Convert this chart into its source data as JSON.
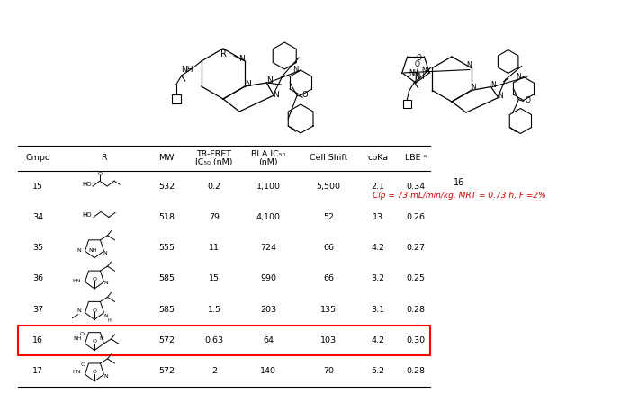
{
  "rows": [
    {
      "cmpd": "15",
      "mw": "532",
      "tr_fret": "0.2",
      "bla": "1,100",
      "cell_shift": "5,500",
      "cpka": "2.1",
      "lbe": "0.34",
      "highlight": false
    },
    {
      "cmpd": "34",
      "mw": "518",
      "tr_fret": "79",
      "bla": "4,100",
      "cell_shift": "52",
      "cpka": "13",
      "lbe": "0.26",
      "highlight": false
    },
    {
      "cmpd": "35",
      "mw": "555",
      "tr_fret": "11",
      "bla": "724",
      "cell_shift": "66",
      "cpka": "4.2",
      "lbe": "0.27",
      "highlight": false
    },
    {
      "cmpd": "36",
      "mw": "585",
      "tr_fret": "15",
      "bla": "990",
      "cell_shift": "66",
      "cpka": "3.2",
      "lbe": "0.25",
      "highlight": false
    },
    {
      "cmpd": "37",
      "mw": "585",
      "tr_fret": "1.5",
      "bla": "203",
      "cell_shift": "135",
      "cpka": "3.1",
      "lbe": "0.28",
      "highlight": false
    },
    {
      "cmpd": "16",
      "mw": "572",
      "tr_fret": "0.63",
      "bla": "64",
      "cell_shift": "103",
      "cpka": "4.2",
      "lbe": "0.30",
      "highlight": true
    },
    {
      "cmpd": "17",
      "mw": "572",
      "tr_fret": "2",
      "bla": "140",
      "cell_shift": "70",
      "cpka": "5.2",
      "lbe": "0.28",
      "highlight": false
    }
  ],
  "annotation_text": "Clp = 73 mL/min/kg, MRT = 0.73 h, F =2%",
  "annotation_color": "#cc0000",
  "bg_color": "#ffffff"
}
